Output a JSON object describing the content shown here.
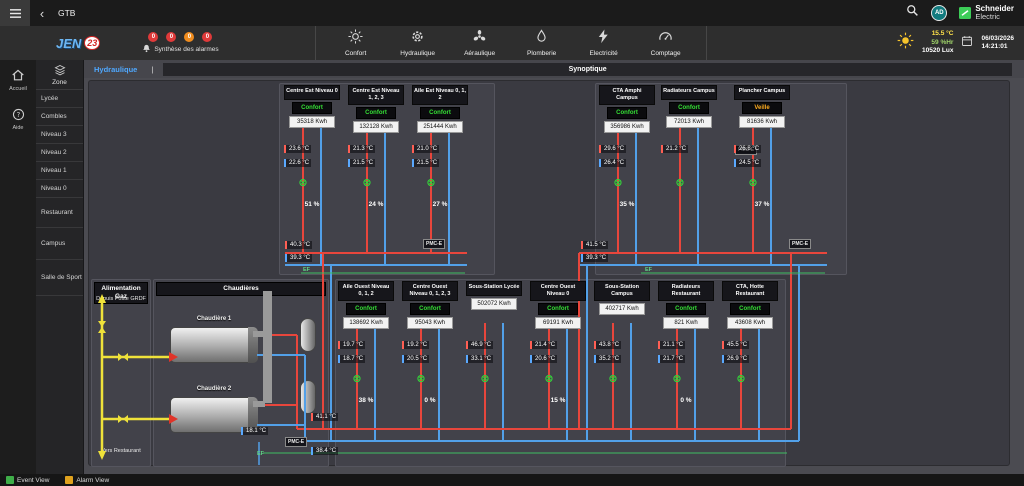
{
  "topbar": {
    "back": "‹",
    "title": "GTB",
    "avatar": "AD",
    "brand_line1": "Schneider",
    "brand_line2": "Electric"
  },
  "logo": {
    "jen": "JEN",
    "num": "23"
  },
  "alarmbar": {
    "label": "Synthèse des alarmes",
    "badges": [
      {
        "count": "0",
        "color": "#e03a3a"
      },
      {
        "count": "0",
        "color": "#e03a3a"
      },
      {
        "count": "0",
        "color": "#f08c1e"
      },
      {
        "count": "0",
        "color": "#e03a3a"
      }
    ]
  },
  "nav": [
    {
      "id": "confort",
      "label": "Confort"
    },
    {
      "id": "hydraulique",
      "label": "Hydraulique"
    },
    {
      "id": "aeraulique",
      "label": "Aéraulique"
    },
    {
      "id": "plomberie",
      "label": "Plomberie"
    },
    {
      "id": "electricite",
      "label": "Electricité"
    },
    {
      "id": "comptage",
      "label": "Comptage"
    }
  ],
  "env": {
    "temp": "15.5 °C",
    "humidity": "59 %Hr",
    "lux": "10520 Lux",
    "date": "06/03/2026",
    "time": "14:21:01"
  },
  "sidebar": {
    "home": "Accueil",
    "help": "Aide"
  },
  "zones": {
    "title": "Zone",
    "items": [
      "Lycée",
      "Combles",
      "Niveau 3",
      "Niveau 2",
      "Niveau 1",
      "Niveau 0",
      "Restaurant",
      "Campus",
      "Salle de Sport"
    ]
  },
  "page": {
    "tab": "Hydraulique",
    "divider": "|",
    "title": "Synoptique"
  },
  "footer": {
    "event": "Event View",
    "alarm": "Alarm View"
  },
  "icons": {
    "valve": "⊗"
  },
  "synoptic": {
    "gas": {
      "title": "Alimentation Gaz",
      "source": "Depuis Poste GRDF",
      "dest": "Vers Restaurant"
    },
    "boilers": {
      "title": "Chaudières",
      "boiler1": "Chaudière 1",
      "boiler2": "Chaudière 2",
      "supply_temp": "41.1 °C",
      "return_temp": "38.4 °C",
      "makeup_temp": "18.1 °C",
      "ef_label": "EF"
    },
    "manifold_left": {
      "supply_temp": "40.3 °C",
      "return_temp": "39.3 °C",
      "ef_label": "EF"
    },
    "manifold_right": {
      "supply_temp": "41.5 °C",
      "return_temp": "39.3 °C",
      "ef_label": "EF"
    },
    "meter_label": "PMC-E",
    "circuits_top": [
      {
        "name": "Centre Est Niveau 0",
        "mode": "Confort",
        "energy": "35318 Kwh",
        "t1": "23.6 °C",
        "t2": "22.6 °C",
        "pct": "51 %"
      },
      {
        "name": "Centre Est Niveau 1, 2, 3",
        "mode": "Confort",
        "energy": "132128 Kwh",
        "t1": "21.3 °C",
        "t2": "21.5 °C",
        "pct": "24 %"
      },
      {
        "name": "Aile Est Niveau 0, 1, 2",
        "mode": "Confort",
        "energy": "251444 Kwh",
        "t1": "21.0 °C",
        "t2": "21.5 °C",
        "pct": "27 %"
      },
      {
        "name": "CTA Amphi Campus",
        "mode": "Confort",
        "energy": "356986 Kwh",
        "t1": "29.6 °C",
        "t2": "26.4 °C",
        "pct": "35 %"
      },
      {
        "name": "Radiateurs Campus",
        "mode": "Confort",
        "energy": "72013 Kwh",
        "t1": "21.2 °C",
        "t2": null,
        "pct": null
      },
      {
        "name": "Plancher Campus",
        "mode": "Veille",
        "energy": "81636 Kwh",
        "t1": "26.8 °C",
        "t2": "24.5 °C",
        "pct": "37 %"
      }
    ],
    "circuits_bottom": [
      {
        "name": "Aile Ouest Niveau 0, 1, 2",
        "mode": "Confort",
        "energy": "138692 Kwh",
        "t1": "19.7 °C",
        "t2": "18.7 °C",
        "pct": "38 %"
      },
      {
        "name": "Centre Ouest Niveau 0, 1, 2, 3",
        "mode": "Confort",
        "energy": "95043 Kwh",
        "t1": "19.2 °C",
        "t2": "20.5 °C",
        "pct": "0 %"
      },
      {
        "name": "Sous-Station Lycée",
        "mode": null,
        "energy": "502072 Kwh",
        "t1": "46.9 °C",
        "t2": "33.1 °C",
        "pct": null
      },
      {
        "name": "Centre Ouest Niveau 0",
        "mode": "Confort",
        "energy": "69191 Kwh",
        "t1": "21.4 °C",
        "t2": "20.6 °C",
        "pct": "15 %"
      },
      {
        "name": "Sous-Station Campus",
        "mode": null,
        "energy": "402717 Kwh",
        "t1": "43.8 °C",
        "t2": "35.2 °C",
        "pct": null
      },
      {
        "name": "Radiateurs Restaurant",
        "mode": "Confort",
        "energy": "821 Kwh",
        "t1": "21.1 °C",
        "t2": "21.7 °C",
        "pct": "0 %"
      },
      {
        "name": "CTA, Hotte Restaurant",
        "mode": "Confort",
        "energy": "43608 Kwh",
        "t1": "45.5 °C",
        "t2": "26.9 °C",
        "pct": null
      }
    ]
  }
}
